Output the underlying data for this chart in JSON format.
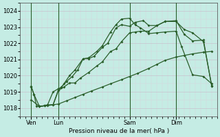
{
  "background_color": "#c5ece4",
  "grid_color_major": "#c8b8c8",
  "grid_color_minor": "#ddd0dd",
  "line_color": "#2a5e2a",
  "marker": "D",
  "markersize": 2.0,
  "linewidth": 0.9,
  "xlabel": "Pression niveau de la mer( hPa )",
  "ylim": [
    1017.5,
    1024.5
  ],
  "yticks": [
    1018,
    1019,
    1020,
    1021,
    1022,
    1023,
    1024
  ],
  "xlim": [
    0,
    72
  ],
  "xtick_labels": [
    "Ven",
    "Lun",
    "Sam",
    "Dim"
  ],
  "xtick_positions": [
    4,
    14,
    40,
    57
  ],
  "vline_positions": [
    4,
    14,
    40,
    57
  ],
  "line1_x": [
    4,
    5,
    6,
    7,
    9,
    10,
    12,
    14,
    15,
    16,
    18,
    20,
    23,
    25,
    27,
    30,
    32,
    35,
    37,
    40,
    42,
    45,
    47,
    50,
    53,
    57,
    60,
    63,
    67,
    70
  ],
  "line1_y": [
    1019.3,
    1018.85,
    1018.1,
    1018.1,
    1018.15,
    1018.2,
    1019.0,
    1019.2,
    1019.25,
    1019.5,
    1020.0,
    1020.35,
    1021.05,
    1021.05,
    1021.2,
    1021.75,
    1022.0,
    1022.95,
    1023.15,
    1023.05,
    1023.3,
    1023.4,
    1023.1,
    1023.1,
    1023.35,
    1023.4,
    1022.55,
    1022.15,
    1022.2,
    1019.35
  ],
  "line2_x": [
    7,
    9,
    12,
    14,
    16,
    18,
    20,
    22,
    25,
    28,
    30,
    33,
    35,
    37,
    40,
    42,
    44,
    47,
    50,
    53,
    57,
    60,
    63,
    67,
    70
  ],
  "line2_y": [
    1018.1,
    1018.15,
    1018.2,
    1019.1,
    1019.3,
    1019.55,
    1019.55,
    1019.85,
    1020.2,
    1020.6,
    1020.85,
    1021.5,
    1021.65,
    1022.1,
    1022.65,
    1022.7,
    1022.75,
    1022.75,
    1023.1,
    1023.35,
    1023.35,
    1022.85,
    1022.65,
    1022.1,
    1019.4
  ],
  "line3_x": [
    4,
    7,
    10,
    14,
    17,
    20,
    23,
    26,
    30,
    33,
    37,
    40,
    43,
    47,
    50,
    53,
    57,
    60,
    63,
    67,
    70
  ],
  "line3_y": [
    1018.5,
    1018.1,
    1018.15,
    1018.25,
    1018.45,
    1018.65,
    1018.85,
    1019.05,
    1019.3,
    1019.5,
    1019.75,
    1019.95,
    1020.15,
    1020.45,
    1020.7,
    1020.95,
    1021.15,
    1021.25,
    1021.35,
    1021.45,
    1021.5
  ],
  "line4_x": [
    4,
    5,
    7,
    9,
    10,
    12,
    14,
    15,
    17,
    19,
    21,
    23,
    25,
    28,
    30,
    33,
    35,
    37,
    40,
    42,
    44,
    47,
    50,
    53,
    57,
    59,
    63,
    67,
    70
  ],
  "line4_y": [
    1019.35,
    1018.85,
    1018.1,
    1018.15,
    1018.2,
    1018.2,
    1019.15,
    1019.3,
    1019.65,
    1019.95,
    1020.35,
    1021.05,
    1021.1,
    1021.5,
    1021.85,
    1022.7,
    1023.15,
    1023.5,
    1023.55,
    1023.15,
    1022.95,
    1022.6,
    1022.65,
    1022.7,
    1022.75,
    1021.8,
    1020.05,
    1019.95,
    1019.5
  ]
}
